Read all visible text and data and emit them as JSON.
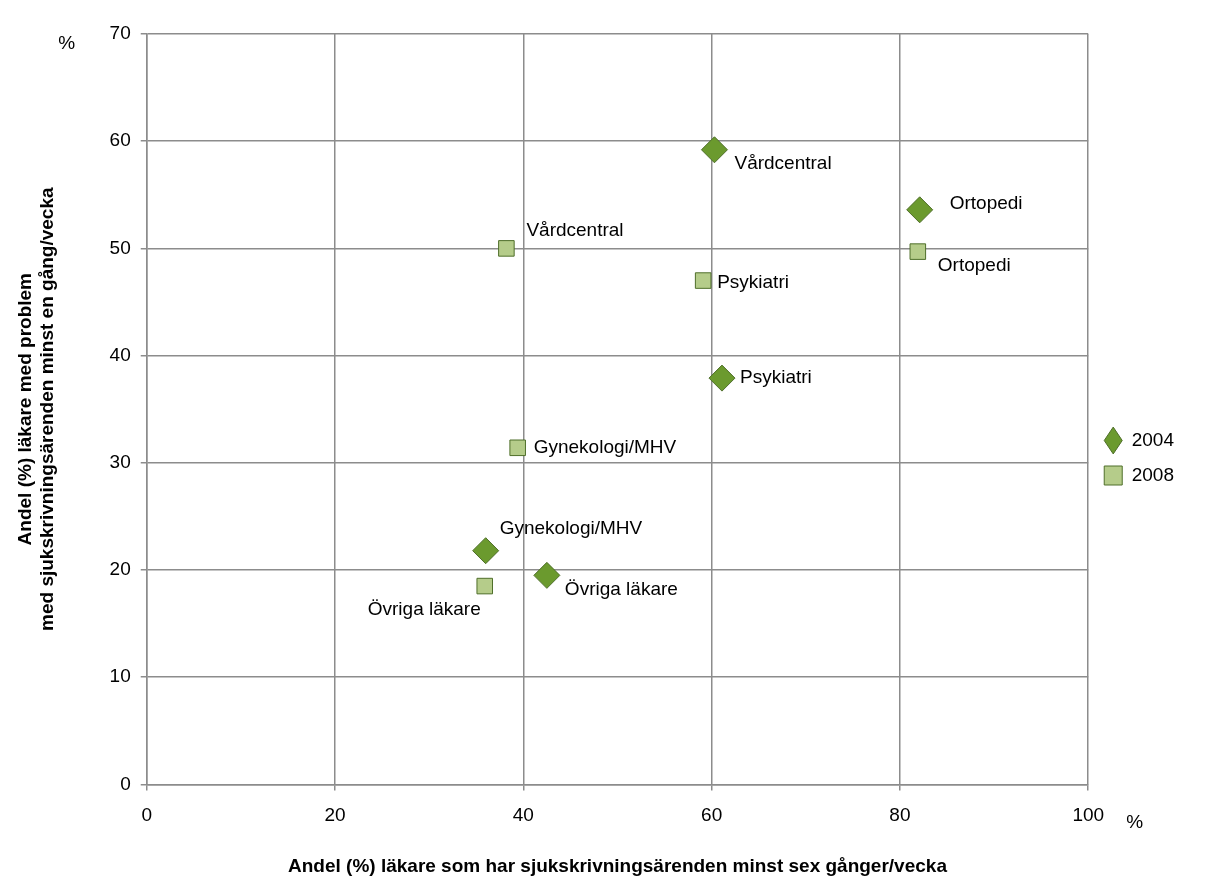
{
  "chart_data": {
    "type": "scatter",
    "xlabel": "Andel (%) läkare som har sjukskrivningsärenden minst sex gånger/vecka",
    "ylabel": "Andel (%) läkare med problem med sjukskrivningsärenden minst en gång/vecka",
    "xlim": [
      0,
      100
    ],
    "xticks": [
      0,
      20,
      40,
      60,
      80,
      100
    ],
    "ylim": [
      0,
      70
    ],
    "yticks": [
      0,
      10,
      20,
      30,
      40,
      50,
      60,
      70
    ],
    "grid": true,
    "legend": "right",
    "series": [
      {
        "name": "2004",
        "color": "#6b9a2e",
        "marker": "diamond",
        "x": [
          60.3,
          82.1,
          61.1,
          36.0,
          42.5
        ],
        "values": [
          59.2,
          53.6,
          37.9,
          21.8,
          19.5
        ]
      },
      {
        "name": "2008",
        "color": "#b5cc8a",
        "marker": "square",
        "x": [
          38.2,
          81.9,
          59.1,
          39.4,
          35.9
        ],
        "values": [
          50.0,
          49.7,
          47.0,
          31.4,
          18.5
        ]
      }
    ],
    "annotations": [
      {
        "text": "Vårdcentral",
        "x": 60.3,
        "y": 59.2
      },
      {
        "text": "Ortopedi",
        "x": 82.1,
        "y": 53.6
      },
      {
        "text": "Psykiatri",
        "x": 61.1,
        "y": 37.9
      },
      {
        "text": "Gynekologi/MHV",
        "x": 36.0,
        "y": 21.8
      },
      {
        "text": "Övriga läkare",
        "x": 42.5,
        "y": 19.5
      },
      {
        "text": "Vårdcentral",
        "x": 38.2,
        "y": 50.0
      },
      {
        "text": "Ortopedi",
        "x": 81.9,
        "y": 49.7
      },
      {
        "text": "Psykiatri",
        "x": 59.1,
        "y": 47.0
      },
      {
        "text": "Gynekologi/MHV",
        "x": 39.4,
        "y": 31.4
      },
      {
        "text": "Övriga läkare",
        "x": 35.9,
        "y": 18.5
      },
      "%",
      "%"
    ]
  }
}
